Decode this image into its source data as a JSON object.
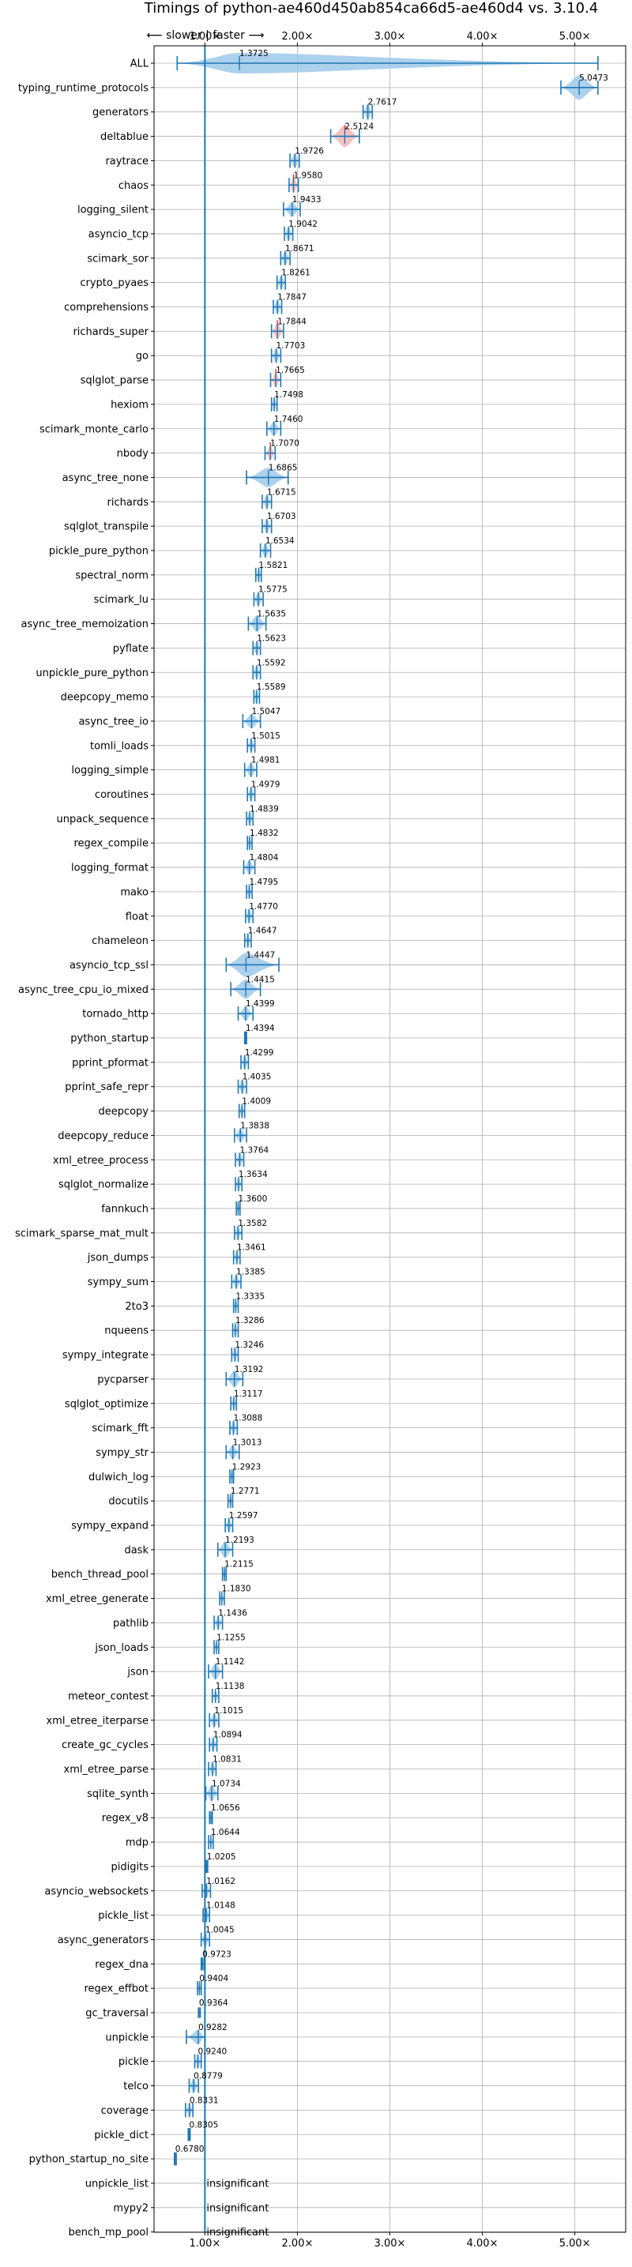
{
  "chart_data": {
    "type": "violin",
    "title": "Timings of python-ae460d450ab854ca66d5-ae460d4 vs. 3.10.4",
    "xlim": [
      0.45,
      5.55
    ],
    "xticks": [
      1,
      2,
      3,
      4,
      5
    ],
    "xtick_labels": [
      "1.00×",
      "2.00×",
      "3.00×",
      "4.00×",
      "5.00×"
    ],
    "direction_label": "⟵ slower | faster ⟶",
    "grid": true,
    "colors": {
      "violin": "#9ec9ea",
      "violin_slow": "#f4b6b6",
      "line": "#1f77b4",
      "ref": "#1f77b4",
      "red_mark": "#e03030"
    },
    "insignificant_label": "insignificant",
    "benchmarks": [
      {
        "name": "ALL",
        "value": 1.3725,
        "label": "1.3725",
        "lo": 0.7,
        "hi": 5.25,
        "w": 0.42,
        "sig": true
      },
      {
        "name": "typing_runtime_protocols",
        "value": 5.0473,
        "label": "5.0473",
        "lo": 4.85,
        "hi": 5.25,
        "w": 0.5,
        "sig": true
      },
      {
        "name": "generators",
        "value": 2.7617,
        "label": "2.7617",
        "lo": 2.71,
        "hi": 2.81,
        "w": 0.35,
        "sig": true
      },
      {
        "name": "deltablue",
        "value": 2.5124,
        "label": "2.5124",
        "lo": 2.36,
        "hi": 2.67,
        "w": 0.45,
        "sig": true,
        "slow": true
      },
      {
        "name": "raytrace",
        "value": 1.9726,
        "label": "1.9726",
        "lo": 1.92,
        "hi": 2.02,
        "w": 0.3,
        "sig": true
      },
      {
        "name": "chaos",
        "value": 1.958,
        "label": "1.9580",
        "lo": 1.91,
        "hi": 2.01,
        "w": 0.35,
        "sig": true,
        "slow": true
      },
      {
        "name": "logging_silent",
        "value": 1.9433,
        "label": "1.9433",
        "lo": 1.85,
        "hi": 2.03,
        "w": 0.3,
        "sig": true
      },
      {
        "name": "asyncio_tcp",
        "value": 1.9042,
        "label": "1.9042",
        "lo": 1.86,
        "hi": 1.95,
        "w": 0.3,
        "sig": true
      },
      {
        "name": "scimark_sor",
        "value": 1.8671,
        "label": "1.8671",
        "lo": 1.82,
        "hi": 1.92,
        "w": 0.3,
        "sig": true
      },
      {
        "name": "crypto_pyaes",
        "value": 1.8261,
        "label": "1.8261",
        "lo": 1.78,
        "hi": 1.87,
        "w": 0.3,
        "sig": true
      },
      {
        "name": "comprehensions",
        "value": 1.7847,
        "label": "1.7847",
        "lo": 1.74,
        "hi": 1.83,
        "w": 0.3,
        "sig": true
      },
      {
        "name": "richards_super",
        "value": 1.7844,
        "label": "1.7844",
        "lo": 1.72,
        "hi": 1.85,
        "w": 0.35,
        "sig": true,
        "slow": true
      },
      {
        "name": "go",
        "value": 1.7703,
        "label": "1.7703",
        "lo": 1.72,
        "hi": 1.82,
        "w": 0.3,
        "sig": true
      },
      {
        "name": "sqlglot_parse",
        "value": 1.7665,
        "label": "1.7665",
        "lo": 1.71,
        "hi": 1.82,
        "w": 0.3,
        "sig": true,
        "slow": true
      },
      {
        "name": "hexiom",
        "value": 1.7498,
        "label": "1.7498",
        "lo": 1.72,
        "hi": 1.78,
        "w": 0.3,
        "sig": true
      },
      {
        "name": "scimark_monte_carlo",
        "value": 1.746,
        "label": "1.7460",
        "lo": 1.67,
        "hi": 1.82,
        "w": 0.3,
        "sig": true
      },
      {
        "name": "nbody",
        "value": 1.707,
        "label": "1.7070",
        "lo": 1.65,
        "hi": 1.76,
        "w": 0.3,
        "sig": true,
        "slow": true
      },
      {
        "name": "async_tree_none",
        "value": 1.6865,
        "label": "1.6865",
        "lo": 1.45,
        "hi": 1.9,
        "w": 0.4,
        "sig": true
      },
      {
        "name": "richards",
        "value": 1.6715,
        "label": "1.6715",
        "lo": 1.62,
        "hi": 1.72,
        "w": 0.3,
        "sig": true
      },
      {
        "name": "sqlglot_transpile",
        "value": 1.6703,
        "label": "1.6703",
        "lo": 1.62,
        "hi": 1.72,
        "w": 0.3,
        "sig": true
      },
      {
        "name": "pickle_pure_python",
        "value": 1.6534,
        "label": "1.6534",
        "lo": 1.6,
        "hi": 1.71,
        "w": 0.3,
        "sig": true
      },
      {
        "name": "spectral_norm",
        "value": 1.5821,
        "label": "1.5821",
        "lo": 1.55,
        "hi": 1.61,
        "w": 0.3,
        "sig": true
      },
      {
        "name": "scimark_lu",
        "value": 1.5775,
        "label": "1.5775",
        "lo": 1.53,
        "hi": 1.63,
        "w": 0.3,
        "sig": true
      },
      {
        "name": "async_tree_memoization",
        "value": 1.5635,
        "label": "1.5635",
        "lo": 1.47,
        "hi": 1.66,
        "w": 0.35,
        "sig": true
      },
      {
        "name": "pyflate",
        "value": 1.5623,
        "label": "1.5623",
        "lo": 1.52,
        "hi": 1.6,
        "w": 0.3,
        "sig": true
      },
      {
        "name": "unpickle_pure_python",
        "value": 1.5592,
        "label": "1.5592",
        "lo": 1.52,
        "hi": 1.6,
        "w": 0.3,
        "sig": true
      },
      {
        "name": "deepcopy_memo",
        "value": 1.5589,
        "label": "1.5589",
        "lo": 1.53,
        "hi": 1.59,
        "w": 0.3,
        "sig": true
      },
      {
        "name": "async_tree_io",
        "value": 1.5047,
        "label": "1.5047",
        "lo": 1.41,
        "hi": 1.6,
        "w": 0.3,
        "sig": true
      },
      {
        "name": "tomli_loads",
        "value": 1.5015,
        "label": "1.5015",
        "lo": 1.46,
        "hi": 1.54,
        "w": 0.3,
        "sig": true
      },
      {
        "name": "logging_simple",
        "value": 1.4981,
        "label": "1.4981",
        "lo": 1.43,
        "hi": 1.56,
        "w": 0.3,
        "sig": true
      },
      {
        "name": "coroutines",
        "value": 1.4979,
        "label": "1.4979",
        "lo": 1.46,
        "hi": 1.54,
        "w": 0.3,
        "sig": true
      },
      {
        "name": "unpack_sequence",
        "value": 1.4839,
        "label": "1.4839",
        "lo": 1.45,
        "hi": 1.52,
        "w": 0.3,
        "sig": true
      },
      {
        "name": "regex_compile",
        "value": 1.4832,
        "label": "1.4832",
        "lo": 1.46,
        "hi": 1.51,
        "w": 0.3,
        "sig": true
      },
      {
        "name": "logging_format",
        "value": 1.4804,
        "label": "1.4804",
        "lo": 1.42,
        "hi": 1.54,
        "w": 0.3,
        "sig": true
      },
      {
        "name": "mako",
        "value": 1.4795,
        "label": "1.4795",
        "lo": 1.45,
        "hi": 1.51,
        "w": 0.3,
        "sig": true
      },
      {
        "name": "float",
        "value": 1.477,
        "label": "1.4770",
        "lo": 1.44,
        "hi": 1.52,
        "w": 0.3,
        "sig": true
      },
      {
        "name": "chameleon",
        "value": 1.4647,
        "label": "1.4647",
        "lo": 1.43,
        "hi": 1.5,
        "w": 0.3,
        "sig": true
      },
      {
        "name": "asyncio_tcp_ssl",
        "value": 1.4447,
        "label": "1.4447",
        "lo": 1.23,
        "hi": 1.8,
        "w": 0.5,
        "sig": true
      },
      {
        "name": "async_tree_cpu_io_mixed",
        "value": 1.4415,
        "label": "1.4415",
        "lo": 1.28,
        "hi": 1.6,
        "w": 0.4,
        "sig": true
      },
      {
        "name": "tornado_http",
        "value": 1.4399,
        "label": "1.4399",
        "lo": 1.36,
        "hi": 1.52,
        "w": 0.3,
        "sig": true
      },
      {
        "name": "python_startup",
        "value": 1.4394,
        "label": "1.4394",
        "lo": 1.43,
        "hi": 1.45,
        "w": 0.2,
        "sig": true
      },
      {
        "name": "pprint_pformat",
        "value": 1.4299,
        "label": "1.4299",
        "lo": 1.39,
        "hi": 1.47,
        "w": 0.3,
        "sig": true
      },
      {
        "name": "pprint_safe_repr",
        "value": 1.4035,
        "label": "1.4035",
        "lo": 1.36,
        "hi": 1.45,
        "w": 0.3,
        "sig": true
      },
      {
        "name": "deepcopy",
        "value": 1.4009,
        "label": "1.4009",
        "lo": 1.37,
        "hi": 1.43,
        "w": 0.3,
        "sig": true
      },
      {
        "name": "deepcopy_reduce",
        "value": 1.3838,
        "label": "1.3838",
        "lo": 1.32,
        "hi": 1.45,
        "w": 0.3,
        "sig": true
      },
      {
        "name": "xml_etree_process",
        "value": 1.3764,
        "label": "1.3764",
        "lo": 1.33,
        "hi": 1.42,
        "w": 0.3,
        "sig": true
      },
      {
        "name": "sqlglot_normalize",
        "value": 1.3634,
        "label": "1.3634",
        "lo": 1.33,
        "hi": 1.4,
        "w": 0.3,
        "sig": true
      },
      {
        "name": "fannkuch",
        "value": 1.36,
        "label": "1.3600",
        "lo": 1.34,
        "hi": 1.38,
        "w": 0.25,
        "sig": true
      },
      {
        "name": "scimark_sparse_mat_mult",
        "value": 1.3582,
        "label": "1.3582",
        "lo": 1.32,
        "hi": 1.4,
        "w": 0.3,
        "sig": true
      },
      {
        "name": "json_dumps",
        "value": 1.3461,
        "label": "1.3461",
        "lo": 1.31,
        "hi": 1.38,
        "w": 0.3,
        "sig": true
      },
      {
        "name": "sympy_sum",
        "value": 1.3385,
        "label": "1.3385",
        "lo": 1.29,
        "hi": 1.39,
        "w": 0.3,
        "sig": true
      },
      {
        "name": "2to3",
        "value": 1.3335,
        "label": "1.3335",
        "lo": 1.31,
        "hi": 1.36,
        "w": 0.25,
        "sig": true
      },
      {
        "name": "nqueens",
        "value": 1.3286,
        "label": "1.3286",
        "lo": 1.3,
        "hi": 1.36,
        "w": 0.3,
        "sig": true
      },
      {
        "name": "sympy_integrate",
        "value": 1.3246,
        "label": "1.3246",
        "lo": 1.29,
        "hi": 1.36,
        "w": 0.3,
        "sig": true
      },
      {
        "name": "pycparser",
        "value": 1.3192,
        "label": "1.3192",
        "lo": 1.23,
        "hi": 1.41,
        "w": 0.35,
        "sig": true
      },
      {
        "name": "sqlglot_optimize",
        "value": 1.3117,
        "label": "1.3117",
        "lo": 1.28,
        "hi": 1.34,
        "w": 0.3,
        "sig": true
      },
      {
        "name": "scimark_fft",
        "value": 1.3088,
        "label": "1.3088",
        "lo": 1.27,
        "hi": 1.35,
        "w": 0.3,
        "sig": true
      },
      {
        "name": "sympy_str",
        "value": 1.3013,
        "label": "1.3013",
        "lo": 1.23,
        "hi": 1.37,
        "w": 0.3,
        "sig": true
      },
      {
        "name": "dulwich_log",
        "value": 1.2923,
        "label": "1.2923",
        "lo": 1.27,
        "hi": 1.31,
        "w": 0.25,
        "sig": true
      },
      {
        "name": "docutils",
        "value": 1.2771,
        "label": "1.2771",
        "lo": 1.25,
        "hi": 1.3,
        "w": 0.25,
        "sig": true
      },
      {
        "name": "sympy_expand",
        "value": 1.2597,
        "label": "1.2597",
        "lo": 1.22,
        "hi": 1.3,
        "w": 0.3,
        "sig": true
      },
      {
        "name": "dask",
        "value": 1.2193,
        "label": "1.2193",
        "lo": 1.14,
        "hi": 1.3,
        "w": 0.35,
        "sig": true
      },
      {
        "name": "bench_thread_pool",
        "value": 1.2115,
        "label": "1.2115",
        "lo": 1.19,
        "hi": 1.23,
        "w": 0.25,
        "sig": true
      },
      {
        "name": "xml_etree_generate",
        "value": 1.183,
        "label": "1.1830",
        "lo": 1.16,
        "hi": 1.21,
        "w": 0.25,
        "sig": true
      },
      {
        "name": "pathlib",
        "value": 1.1436,
        "label": "1.1436",
        "lo": 1.1,
        "hi": 1.19,
        "w": 0.3,
        "sig": true
      },
      {
        "name": "json_loads",
        "value": 1.1255,
        "label": "1.1255",
        "lo": 1.1,
        "hi": 1.15,
        "w": 0.25,
        "sig": true
      },
      {
        "name": "json",
        "value": 1.1142,
        "label": "1.1142",
        "lo": 1.04,
        "hi": 1.19,
        "w": 0.35,
        "sig": true
      },
      {
        "name": "meteor_contest",
        "value": 1.1138,
        "label": "1.1138",
        "lo": 1.08,
        "hi": 1.15,
        "w": 0.25,
        "sig": true
      },
      {
        "name": "xml_etree_iterparse",
        "value": 1.1015,
        "label": "1.1015",
        "lo": 1.05,
        "hi": 1.15,
        "w": 0.3,
        "sig": true
      },
      {
        "name": "create_gc_cycles",
        "value": 1.0894,
        "label": "1.0894",
        "lo": 1.05,
        "hi": 1.13,
        "w": 0.3,
        "sig": true
      },
      {
        "name": "xml_etree_parse",
        "value": 1.0831,
        "label": "1.0831",
        "lo": 1.04,
        "hi": 1.12,
        "w": 0.3,
        "sig": true
      },
      {
        "name": "sqlite_synth",
        "value": 1.0734,
        "label": "1.0734",
        "lo": 1.01,
        "hi": 1.14,
        "w": 0.35,
        "sig": true
      },
      {
        "name": "regex_v8",
        "value": 1.0656,
        "label": "1.0656",
        "lo": 1.05,
        "hi": 1.08,
        "w": 0.2,
        "sig": true
      },
      {
        "name": "mdp",
        "value": 1.0644,
        "label": "1.0644",
        "lo": 1.04,
        "hi": 1.09,
        "w": 0.25,
        "sig": true
      },
      {
        "name": "pidigits",
        "value": 1.0205,
        "label": "1.0205",
        "lo": 1.01,
        "hi": 1.03,
        "w": 0.2,
        "sig": true
      },
      {
        "name": "asyncio_websockets",
        "value": 1.0162,
        "label": "1.0162",
        "lo": 0.97,
        "hi": 1.06,
        "w": 0.3,
        "sig": true
      },
      {
        "name": "pickle_list",
        "value": 1.0148,
        "label": "1.0148",
        "lo": 0.98,
        "hi": 1.05,
        "w": 0.3,
        "sig": true
      },
      {
        "name": "async_generators",
        "value": 1.0045,
        "label": "1.0045",
        "lo": 0.96,
        "hi": 1.05,
        "w": 0.3,
        "sig": true
      },
      {
        "name": "regex_dna",
        "value": 0.9723,
        "label": "0.9723",
        "lo": 0.96,
        "hi": 0.99,
        "w": 0.2,
        "sig": true
      },
      {
        "name": "regex_effbot",
        "value": 0.9404,
        "label": "0.9404",
        "lo": 0.92,
        "hi": 0.96,
        "w": 0.25,
        "sig": true
      },
      {
        "name": "gc_traversal",
        "value": 0.9364,
        "label": "0.9364",
        "lo": 0.93,
        "hi": 0.95,
        "w": 0.15,
        "sig": true
      },
      {
        "name": "unpickle",
        "value": 0.9282,
        "label": "0.9282",
        "lo": 0.8,
        "hi": 1.0,
        "w": 0.3,
        "sig": true
      },
      {
        "name": "pickle",
        "value": 0.924,
        "label": "0.9240",
        "lo": 0.89,
        "hi": 0.96,
        "w": 0.3,
        "sig": true
      },
      {
        "name": "telco",
        "value": 0.8779,
        "label": "0.8779",
        "lo": 0.83,
        "hi": 0.93,
        "w": 0.3,
        "sig": true
      },
      {
        "name": "coverage",
        "value": 0.8331,
        "label": "0.8331",
        "lo": 0.79,
        "hi": 0.87,
        "w": 0.3,
        "sig": true
      },
      {
        "name": "pickle_dict",
        "value": 0.8305,
        "label": "0.8305",
        "lo": 0.82,
        "hi": 0.84,
        "w": 0.2,
        "sig": true
      },
      {
        "name": "python_startup_no_site",
        "value": 0.678,
        "label": "0.6780",
        "lo": 0.67,
        "hi": 0.69,
        "w": 0.2,
        "sig": true
      },
      {
        "name": "unpickle_list",
        "value": 1.0,
        "label": "insignificant",
        "sig": false
      },
      {
        "name": "mypy2",
        "value": 1.0,
        "label": "insignificant",
        "sig": false
      },
      {
        "name": "bench_mp_pool",
        "value": 1.0,
        "label": "insignificant",
        "sig": false
      }
    ]
  }
}
